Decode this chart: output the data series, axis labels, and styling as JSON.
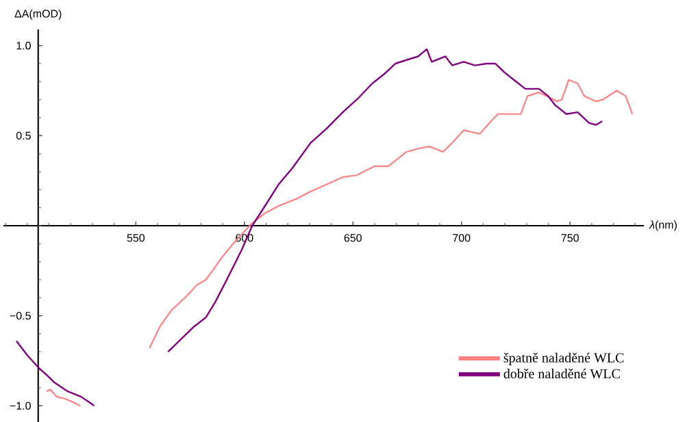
{
  "chart_data": {
    "type": "line",
    "xlabel": "*λ*(nm)",
    "ylabel": "ΔA(mOD)",
    "xlim": [
      489,
      784
    ],
    "ylim": [
      -1.09,
      1.09
    ],
    "xticks": [
      550,
      600,
      650,
      700,
      750
    ],
    "yticks": [
      {
        "value": -1.0,
        "label": "−1.0"
      },
      {
        "value": -0.5,
        "label": "−0.5"
      },
      {
        "value": 0.5,
        "label": "0.5"
      },
      {
        "value": 1.0,
        "label": "1.0"
      }
    ],
    "legend": "bottom right",
    "marker": "none",
    "line_style": "solid",
    "series": [
      {
        "name": "špatně naladěné WLC",
        "color": "#ff8080",
        "x": [
          508.9,
          510.5,
          513.6,
          517.3,
          521.0,
          524.4,
          540.0,
          556.3,
          561.1,
          566.4,
          571.7,
          575.0,
          578.0,
          582.2,
          585.3,
          589.4,
          594.8,
          603.2,
          609.5,
          615.8,
          624.1,
          630.5,
          637.9,
          645.3,
          651.6,
          660.0,
          666.3,
          674.6,
          680.9,
          685.2,
          691.5,
          695.7,
          701.0,
          708.4,
          713.6,
          716.8,
          727.3,
          730.4,
          735.7,
          740.9,
          744.0,
          746.2,
          749.4,
          753.5,
          756.6,
          762.0,
          765.1,
          771.5,
          775.6,
          778.7
        ],
        "values": [
          -0.92,
          -0.91,
          -0.95,
          -0.96,
          -0.98,
          -1.0,
          null,
          -0.68,
          -0.56,
          -0.47,
          -0.41,
          -0.37,
          -0.33,
          -0.3,
          -0.25,
          -0.18,
          -0.1,
          0.01,
          0.07,
          0.11,
          0.15,
          0.19,
          0.23,
          0.27,
          0.28,
          0.33,
          0.33,
          0.41,
          0.43,
          0.44,
          0.41,
          0.46,
          0.53,
          0.51,
          0.58,
          0.62,
          0.62,
          0.72,
          0.74,
          0.71,
          0.69,
          0.7,
          0.81,
          0.79,
          0.72,
          0.69,
          0.7,
          0.75,
          0.72,
          0.62
        ]
      },
      {
        "name": "dobře naladěné WLC",
        "color": "#800080",
        "x": [
          495.0,
          500.0,
          505.3,
          509.9,
          512.4,
          518.6,
          524.8,
          528.5,
          530.8,
          548.0,
          564.8,
          571.7,
          576.8,
          582.2,
          586.3,
          590.6,
          594.8,
          598.9,
          603.6,
          609.5,
          615.8,
          622.1,
          630.5,
          637.9,
          645.3,
          652.6,
          658.9,
          664.2,
          669.5,
          674.6,
          680.0,
          684.0,
          686.3,
          692.6,
          695.7,
          701.0,
          706.2,
          711.5,
          715.6,
          719.9,
          724.1,
          729.4,
          735.7,
          739.9,
          743.1,
          748.3,
          753.5,
          758.8,
          762.0,
          764.8
        ],
        "values": [
          -0.64,
          -0.72,
          -0.79,
          -0.84,
          -0.87,
          -0.92,
          -0.95,
          -0.98,
          -1.0,
          null,
          -0.7,
          -0.62,
          -0.56,
          -0.51,
          -0.43,
          -0.33,
          -0.23,
          -0.13,
          0.0,
          0.11,
          0.23,
          0.32,
          0.46,
          0.54,
          0.63,
          0.71,
          0.79,
          0.84,
          0.9,
          0.92,
          0.94,
          0.98,
          0.91,
          0.94,
          0.89,
          0.91,
          0.89,
          0.9,
          0.9,
          0.85,
          0.81,
          0.76,
          0.76,
          0.72,
          0.67,
          0.62,
          0.63,
          0.57,
          0.56,
          0.58
        ]
      }
    ]
  }
}
